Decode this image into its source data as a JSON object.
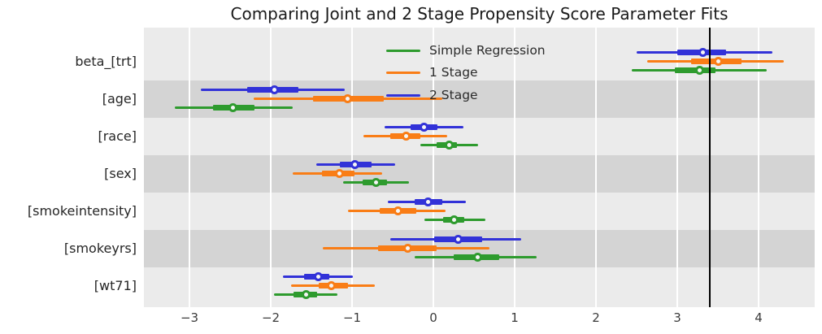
{
  "chart_data": {
    "type": "scatter",
    "subtype": "forest-plot-dot-with-intervals",
    "title": "Comparing Joint and 2 Stage Propensity Score Parameter Fits",
    "xlabel": "",
    "ylabel": "",
    "categories": [
      "beta_[trt]",
      "[age]",
      "[race]",
      "[sex]",
      "[smokeintensity]",
      "[smokeyrs]",
      "[wt71]"
    ],
    "series": [
      {
        "name": "Simple Regression",
        "color": "#2e9b2e",
        "points": [
          3.27,
          -2.47,
          0.19,
          -0.71,
          0.25,
          0.54,
          -1.57
        ],
        "inner": [
          [
            2.97,
            3.47
          ],
          [
            -2.71,
            -2.2
          ],
          [
            0.04,
            0.29
          ],
          [
            -0.87,
            -0.57
          ],
          [
            0.12,
            0.38
          ],
          [
            0.25,
            0.81
          ],
          [
            -1.72,
            -1.43
          ]
        ],
        "outer": [
          [
            2.44,
            4.1
          ],
          [
            -3.18,
            -1.73
          ],
          [
            -0.16,
            0.55
          ],
          [
            -1.11,
            -0.3
          ],
          [
            -0.11,
            0.64
          ],
          [
            -0.23,
            1.27
          ],
          [
            -1.96,
            -1.18
          ]
        ]
      },
      {
        "name": "1 Stage",
        "color": "#f97d16",
        "points": [
          3.5,
          -1.06,
          -0.34,
          -1.16,
          -0.44,
          -0.32,
          -1.26
        ],
        "inner": [
          [
            3.17,
            3.79
          ],
          [
            -1.48,
            -0.61
          ],
          [
            -0.53,
            -0.16
          ],
          [
            -1.37,
            -0.97
          ],
          [
            -0.66,
            -0.21
          ],
          [
            -0.68,
            0.04
          ],
          [
            -1.41,
            -1.05
          ]
        ],
        "outer": [
          [
            2.63,
            4.31
          ],
          [
            -2.21,
            0.11
          ],
          [
            -0.86,
            0.17
          ],
          [
            -1.73,
            -0.63
          ],
          [
            -1.05,
            0.15
          ],
          [
            -1.36,
            0.69
          ],
          [
            -1.75,
            -0.72
          ]
        ]
      },
      {
        "name": "2 Stage",
        "color": "#3232d8",
        "points": [
          3.31,
          -1.96,
          -0.12,
          -0.97,
          -0.07,
          0.3,
          -1.42
        ],
        "inner": [
          [
            3.0,
            3.6
          ],
          [
            -2.29,
            -1.66
          ],
          [
            -0.28,
            0.05
          ],
          [
            -1.15,
            -0.76
          ],
          [
            -0.23,
            0.11
          ],
          [
            0.01,
            0.6
          ],
          [
            -1.59,
            -1.28
          ]
        ],
        "outer": [
          [
            2.5,
            4.17
          ],
          [
            -2.86,
            -1.09
          ],
          [
            -0.6,
            0.37
          ],
          [
            -1.44,
            -0.47
          ],
          [
            -0.56,
            0.4
          ],
          [
            -0.53,
            1.08
          ],
          [
            -1.85,
            -0.99
          ]
        ]
      }
    ],
    "xticks": [
      -3,
      -2,
      -1,
      0,
      1,
      2,
      3,
      4
    ],
    "xtick_labels": [
      "−3",
      "−2",
      "−1",
      "0",
      "1",
      "2",
      "3",
      "4"
    ],
    "xlim": [
      -3.56,
      4.69
    ],
    "reference_line": {
      "x": 3.4,
      "color": "#000000"
    },
    "grid": "on",
    "legend_position": "upper center",
    "band_colors": [
      "#ebebeb",
      "#d4d4d4"
    ]
  }
}
